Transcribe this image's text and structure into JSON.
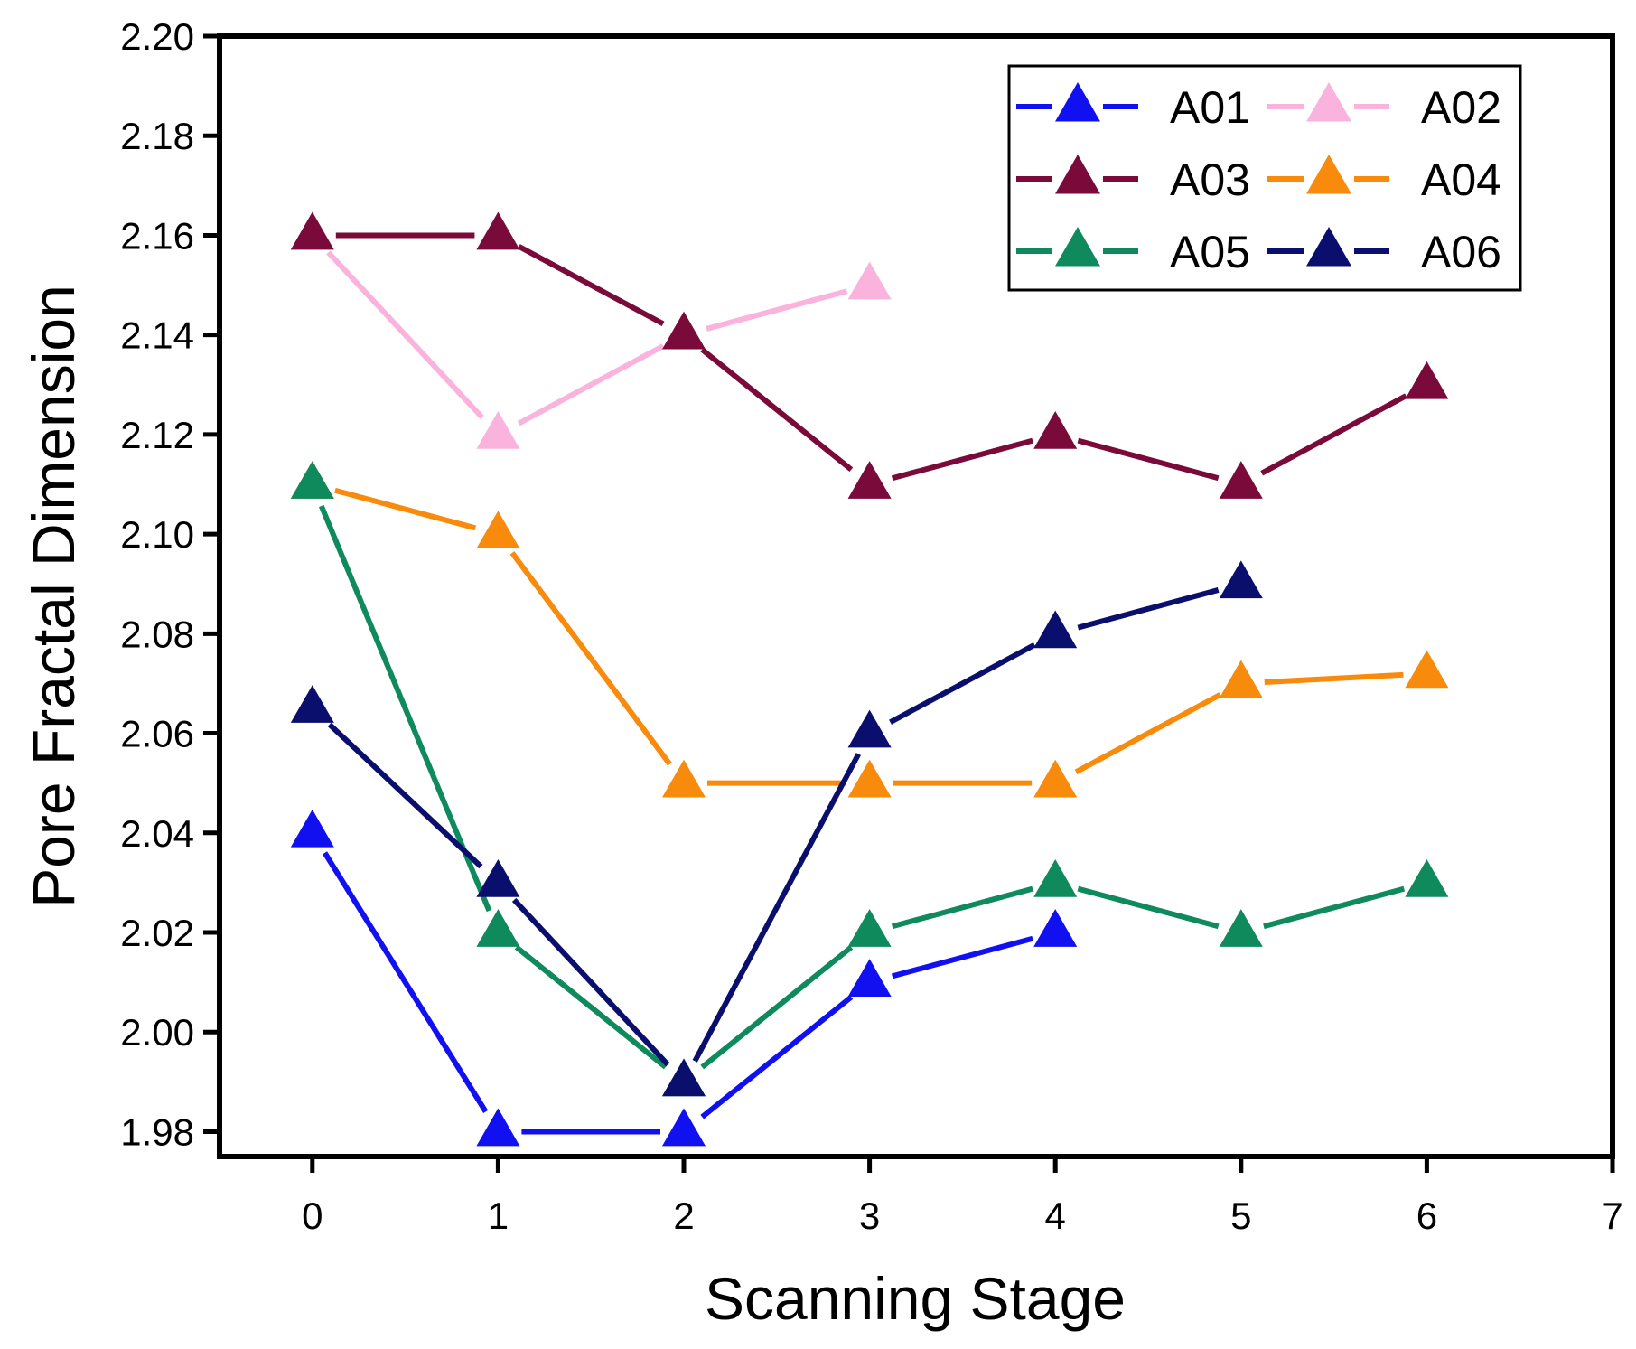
{
  "chart_data": {
    "type": "line",
    "xlabel": "Scanning Stage",
    "ylabel": "Pore Fractal Dimension",
    "xlim": [
      -0.5,
      7
    ],
    "ylim": [
      1.975,
      2.2
    ],
    "xticks": [
      0,
      1,
      2,
      3,
      4,
      5,
      6,
      7
    ],
    "yticks": [
      1.98,
      2.0,
      2.02,
      2.04,
      2.06,
      2.08,
      2.1,
      2.12,
      2.14,
      2.16,
      2.18,
      2.2
    ],
    "ytick_labels": [
      "1.98",
      "2.00",
      "2.02",
      "2.04",
      "2.06",
      "2.08",
      "2.10",
      "2.12",
      "2.14",
      "2.16",
      "2.18",
      "2.20"
    ],
    "grid": false,
    "legend_position": "top-right",
    "marker": "triangle",
    "series": [
      {
        "name": "A01",
        "color": "#1010f0",
        "x": [
          0,
          1,
          2,
          3,
          4
        ],
        "values": [
          2.04,
          1.98,
          1.98,
          2.01,
          2.02
        ]
      },
      {
        "name": "A02",
        "color": "#f9b3dc",
        "x": [
          0,
          1,
          2,
          3
        ],
        "values": [
          2.16,
          2.12,
          2.14,
          2.15
        ]
      },
      {
        "name": "A03",
        "color": "#7a0a3a",
        "x": [
          0,
          1,
          2,
          3,
          4,
          5,
          6
        ],
        "values": [
          2.16,
          2.16,
          2.14,
          2.11,
          2.12,
          2.11,
          2.13
        ]
      },
      {
        "name": "A04",
        "color": "#f88a0c",
        "x": [
          0,
          1,
          2,
          3,
          4,
          5,
          6
        ],
        "values": [
          2.11,
          2.1,
          2.05,
          2.05,
          2.05,
          2.07,
          2.072
        ]
      },
      {
        "name": "A05",
        "color": "#0e8a5c",
        "x": [
          0,
          1,
          2,
          3,
          4,
          5,
          6
        ],
        "values": [
          2.11,
          2.02,
          1.99,
          2.02,
          2.03,
          2.02,
          2.03
        ]
      },
      {
        "name": "A06",
        "color": "#0a0f6e",
        "x": [
          0,
          1,
          2,
          3,
          4,
          5
        ],
        "values": [
          2.065,
          2.03,
          1.99,
          2.06,
          2.08,
          2.09
        ]
      }
    ]
  }
}
